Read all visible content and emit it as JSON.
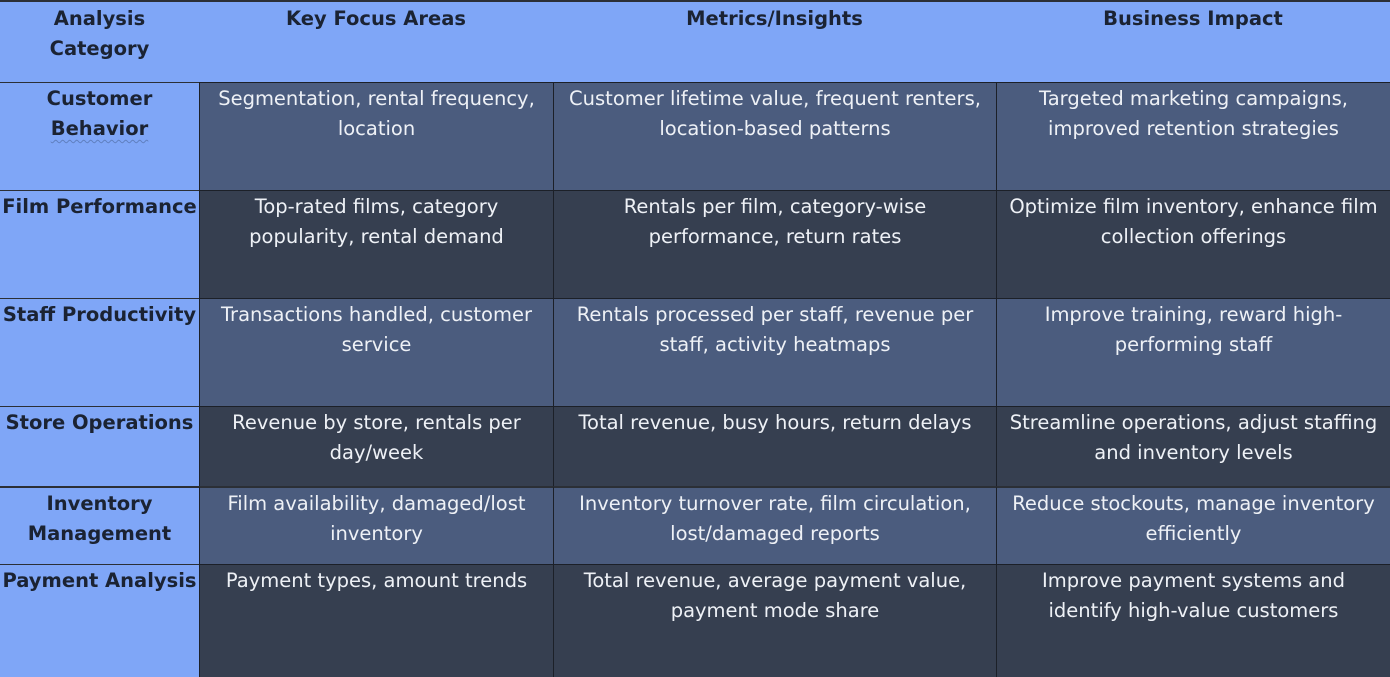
{
  "header": {
    "category": "Analysis Category",
    "focus": "Key Focus Areas",
    "metrics": "Metrics/Insights",
    "impact": "Business Impact"
  },
  "rows": [
    {
      "category_part1": "Customer ",
      "category_part2": "Behavior",
      "focus": "Segmentation, rental frequency, location",
      "metrics": "Customer lifetime value, frequent renters, location-based patterns",
      "impact": "Targeted marketing campaigns, improved retention strategies"
    },
    {
      "category": "Film Performance",
      "focus": "Top-rated films, category popularity, rental demand",
      "metrics": "Rentals per film, category-wise performance, return rates",
      "impact": "Optimize film inventory, enhance film collection offerings"
    },
    {
      "category": "Staff Productivity",
      "focus": "Transactions handled, customer service",
      "metrics": "Rentals processed per staff, revenue per staff, activity heatmaps",
      "impact": "Improve training, reward high-performing staff"
    },
    {
      "category": "Store Operations",
      "focus": "Revenue by store, rentals per day/week",
      "metrics": "Total revenue, busy hours, return delays",
      "impact": "Streamline operations, adjust staffing and inventory levels"
    },
    {
      "category": "Inventory Management",
      "focus": "Film availability, damaged/lost inventory",
      "metrics": "Inventory turnover rate, film circulation, lost/damaged reports",
      "impact": "Reduce stockouts, manage inventory efficiently"
    },
    {
      "category": "Payment Analysis",
      "focus": "Payment types, amount trends",
      "metrics": "Total revenue, average payment value, payment mode share",
      "impact": "Improve payment systems and identify high-value customers"
    }
  ],
  "colors": {
    "header_bg": "#7fa6f7",
    "row_light": "#4b5c7e",
    "row_dark": "#363f50",
    "text_dark": "#1b2333",
    "text_light": "#eef1f6"
  }
}
